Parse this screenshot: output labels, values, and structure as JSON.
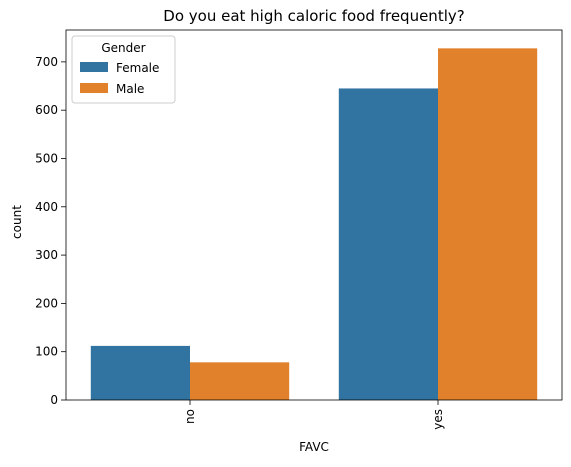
{
  "chart_data": {
    "type": "bar",
    "title": "Do you eat high caloric food frequently?",
    "xlabel": "FAVC",
    "ylabel": "count",
    "categories": [
      "no",
      "yes"
    ],
    "ylim": [
      0,
      766
    ],
    "yticks": [
      0,
      100,
      200,
      300,
      400,
      500,
      600,
      700
    ],
    "grid": false,
    "series": [
      {
        "name": "Female",
        "values": [
          112,
          645
        ],
        "color": "#3274a1"
      },
      {
        "name": "Male",
        "values": [
          78,
          728
        ],
        "color": "#e1812c"
      }
    ],
    "legend": {
      "title": "Gender",
      "position": "top-left"
    },
    "x_tick_rotation": "vertical"
  }
}
